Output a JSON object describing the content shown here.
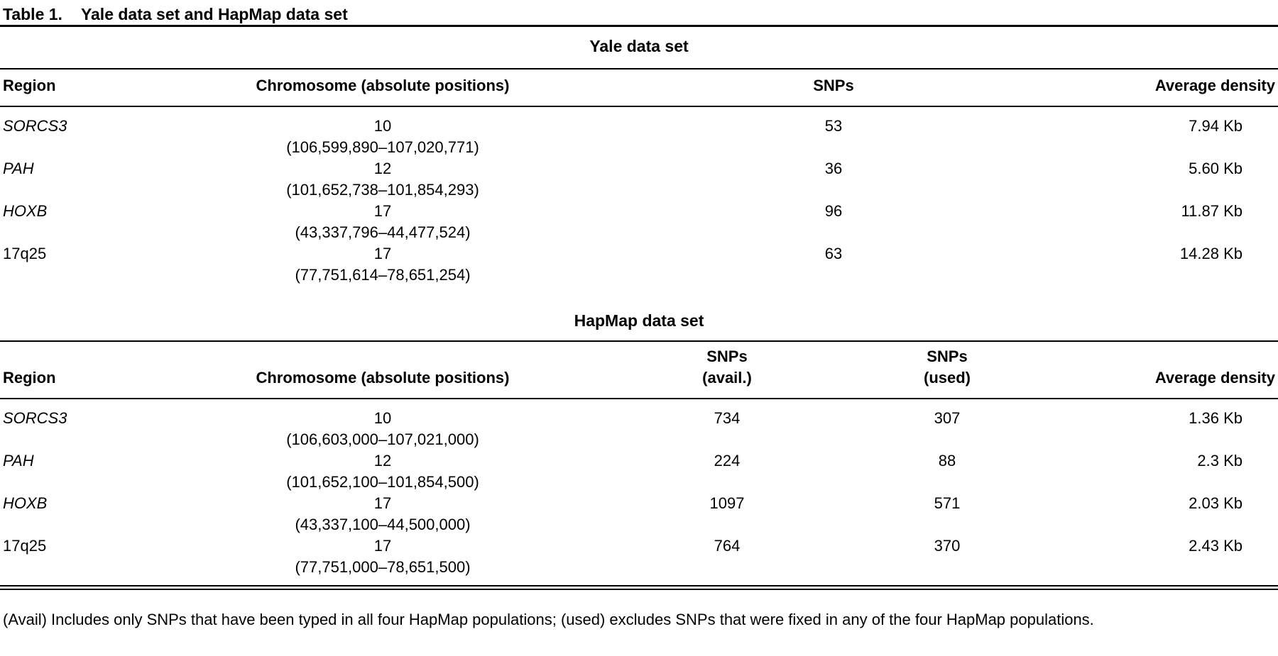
{
  "caption": {
    "label": "Table 1.",
    "title": "Yale data set and HapMap data set"
  },
  "colors": {
    "text": "#000000",
    "background": "#ffffff",
    "rule": "#000000"
  },
  "yale": {
    "title": "Yale data set",
    "headers": {
      "region": "Region",
      "chromosome": "Chromosome (absolute positions)",
      "snps": "SNPs",
      "density": "Average density"
    },
    "rows": [
      {
        "region": "SORCS3",
        "chromosome": "10",
        "positions": "(106,599,890–107,020,771)",
        "snps": "53",
        "density": "7.94 Kb"
      },
      {
        "region": "PAH",
        "chromosome": "12",
        "positions": "(101,652,738–101,854,293)",
        "snps": "36",
        "density": "5.60 Kb"
      },
      {
        "region": "HOXB",
        "chromosome": "17",
        "positions": "(43,337,796–44,477,524)",
        "snps": "96",
        "density": "11.87 Kb"
      },
      {
        "region": "17q25",
        "chromosome": "17",
        "positions": "(77,751,614–78,651,254)",
        "snps": "63",
        "density": "14.28 Kb"
      }
    ]
  },
  "hapmap": {
    "title": "HapMap data set",
    "headers": {
      "region": "Region",
      "chromosome": "Chromosome (absolute positions)",
      "snps_avail_top": "SNPs",
      "snps_avail_bottom": "(avail.)",
      "snps_used_top": "SNPs",
      "snps_used_bottom": "(used)",
      "density": "Average density"
    },
    "rows": [
      {
        "region": "SORCS3",
        "chromosome": "10",
        "positions": "(106,603,000–107,021,000)",
        "snps_avail": "734",
        "snps_used": "307",
        "density": "1.36 Kb"
      },
      {
        "region": "PAH",
        "chromosome": "12",
        "positions": "(101,652,100–101,854,500)",
        "snps_avail": "224",
        "snps_used": "88",
        "density": "2.3 Kb"
      },
      {
        "region": "HOXB",
        "chromosome": "17",
        "positions": "(43,337,100–44,500,000)",
        "snps_avail": "1097",
        "snps_used": "571",
        "density": "2.03 Kb"
      },
      {
        "region": "17q25",
        "chromosome": "17",
        "positions": "(77,751,000–78,651,500)",
        "snps_avail": "764",
        "snps_used": "370",
        "density": "2.43 Kb"
      }
    ]
  },
  "footnote": "(Avail) Includes only SNPs that have been typed in all four HapMap populations; (used) excludes SNPs that were fixed in any of the four HapMap populations."
}
